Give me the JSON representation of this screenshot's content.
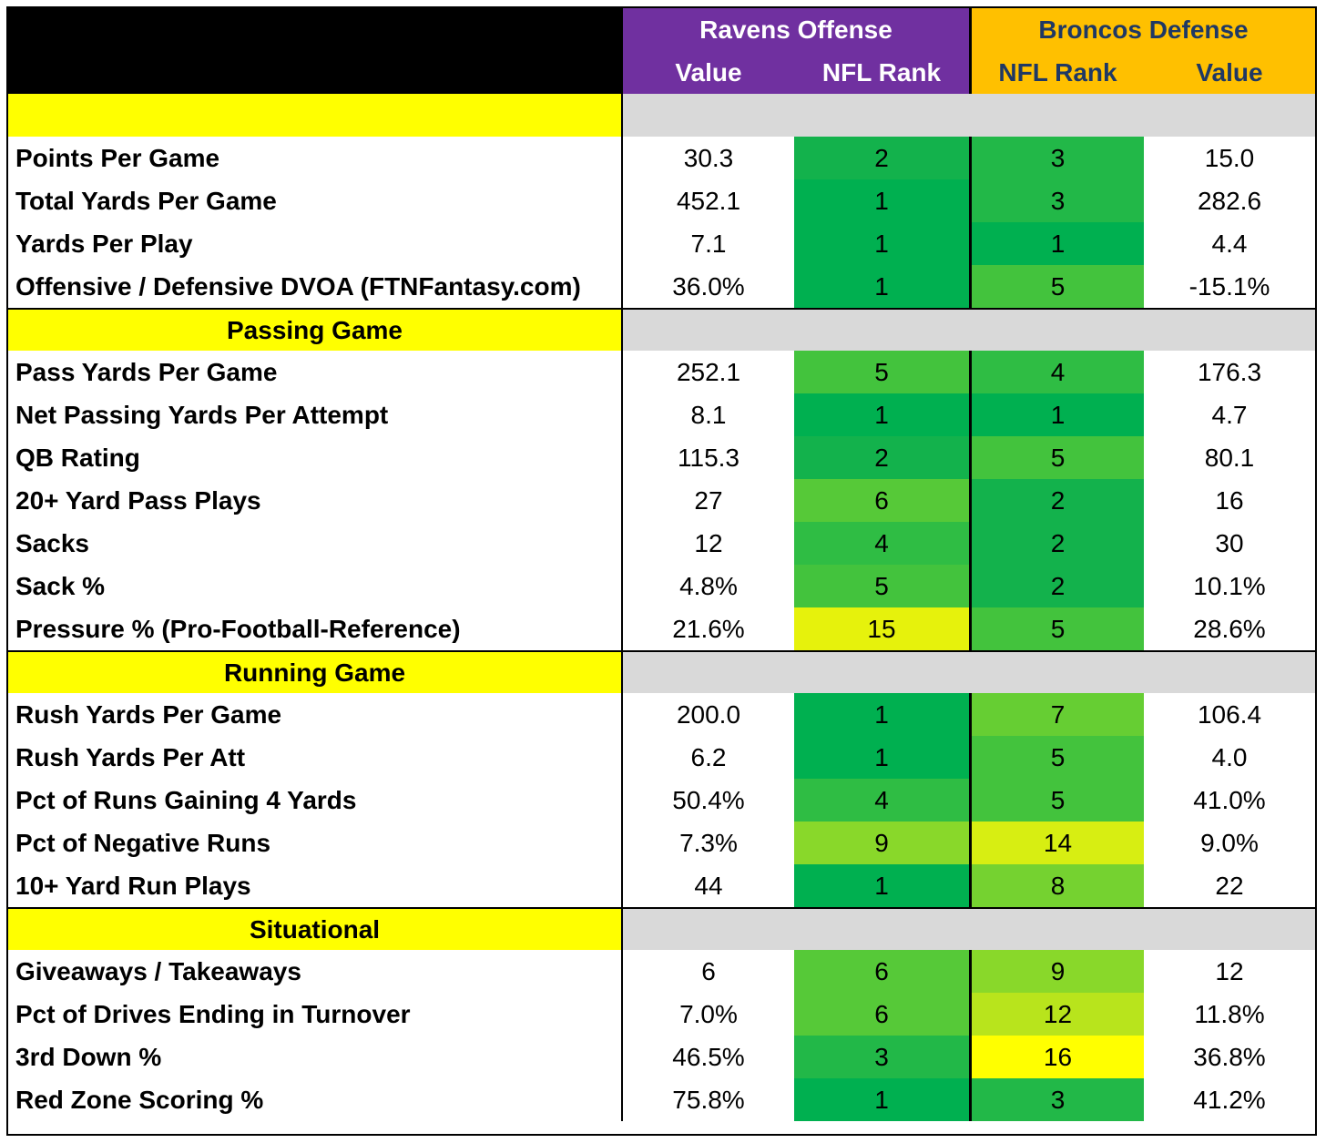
{
  "header": {
    "offense_team": "Ravens Offense",
    "defense_team": "Broncos Defense",
    "col_value": "Value",
    "col_rank": "NFL Rank"
  },
  "colors": {
    "rank_1": "#00B050",
    "rank_2": "#13B24C",
    "rank_3": "#22B848",
    "rank_4": "#2FBD44",
    "rank_5": "#43C33D",
    "rank_6": "#56C938",
    "rank_7": "#66CE33",
    "rank_8": "#75D230",
    "rank_9": "#89D82A",
    "rank_12": "#B8E41C",
    "rank_14": "#D7EE12",
    "rank_15": "#E6F20C",
    "rank_16": "#FFFF00"
  },
  "sections": [
    {
      "title": "",
      "rows": [
        {
          "label": "Points Per Game",
          "off_value": "30.3",
          "off_rank": "2",
          "def_rank": "3",
          "def_value": "15.0"
        },
        {
          "label": "Total Yards Per Game",
          "off_value": "452.1",
          "off_rank": "1",
          "def_rank": "3",
          "def_value": "282.6"
        },
        {
          "label": "Yards Per Play",
          "off_value": "7.1",
          "off_rank": "1",
          "def_rank": "1",
          "def_value": "4.4"
        },
        {
          "label": "Offensive / Defensive DVOA (FTNFantasy.com)",
          "off_value": "36.0%",
          "off_rank": "1",
          "def_rank": "5",
          "def_value": "-15.1%"
        }
      ]
    },
    {
      "title": "Passing Game",
      "rows": [
        {
          "label": "Pass Yards Per Game",
          "off_value": "252.1",
          "off_rank": "5",
          "def_rank": "4",
          "def_value": "176.3"
        },
        {
          "label": "Net Passing Yards Per Attempt",
          "off_value": "8.1",
          "off_rank": "1",
          "def_rank": "1",
          "def_value": "4.7"
        },
        {
          "label": "QB Rating",
          "off_value": "115.3",
          "off_rank": "2",
          "def_rank": "5",
          "def_value": "80.1"
        },
        {
          "label": "20+ Yard Pass Plays",
          "off_value": "27",
          "off_rank": "6",
          "def_rank": "2",
          "def_value": "16"
        },
        {
          "label": "Sacks",
          "off_value": "12",
          "off_rank": "4",
          "def_rank": "2",
          "def_value": "30"
        },
        {
          "label": "Sack %",
          "off_value": "4.8%",
          "off_rank": "5",
          "def_rank": "2",
          "def_value": "10.1%"
        },
        {
          "label": "Pressure % (Pro-Football-Reference)",
          "off_value": "21.6%",
          "off_rank": "15",
          "def_rank": "5",
          "def_value": "28.6%"
        }
      ]
    },
    {
      "title": "Running Game",
      "rows": [
        {
          "label": "Rush Yards Per Game",
          "off_value": "200.0",
          "off_rank": "1",
          "def_rank": "7",
          "def_value": "106.4"
        },
        {
          "label": "Rush Yards Per Att",
          "off_value": "6.2",
          "off_rank": "1",
          "def_rank": "5",
          "def_value": "4.0"
        },
        {
          "label": "Pct of Runs Gaining 4 Yards",
          "off_value": "50.4%",
          "off_rank": "4",
          "def_rank": "5",
          "def_value": "41.0%"
        },
        {
          "label": "Pct of Negative Runs",
          "off_value": "7.3%",
          "off_rank": "9",
          "def_rank": "14",
          "def_value": "9.0%"
        },
        {
          "label": "10+ Yard Run Plays",
          "off_value": "44",
          "off_rank": "1",
          "def_rank": "8",
          "def_value": "22"
        }
      ]
    },
    {
      "title": "Situational",
      "rows": [
        {
          "label": "Giveaways / Takeaways",
          "off_value": "6",
          "off_rank": "6",
          "def_rank": "9",
          "def_value": "12"
        },
        {
          "label": "Pct of Drives Ending in Turnover",
          "off_value": "7.0%",
          "off_rank": "6",
          "def_rank": "12",
          "def_value": "11.8%"
        },
        {
          "label": "3rd Down %",
          "off_value": "46.5%",
          "off_rank": "3",
          "def_rank": "16",
          "def_value": "36.8%"
        },
        {
          "label": "Red Zone Scoring %",
          "off_value": "75.8%",
          "off_rank": "1",
          "def_rank": "3",
          "def_value": "41.2%"
        }
      ]
    }
  ]
}
